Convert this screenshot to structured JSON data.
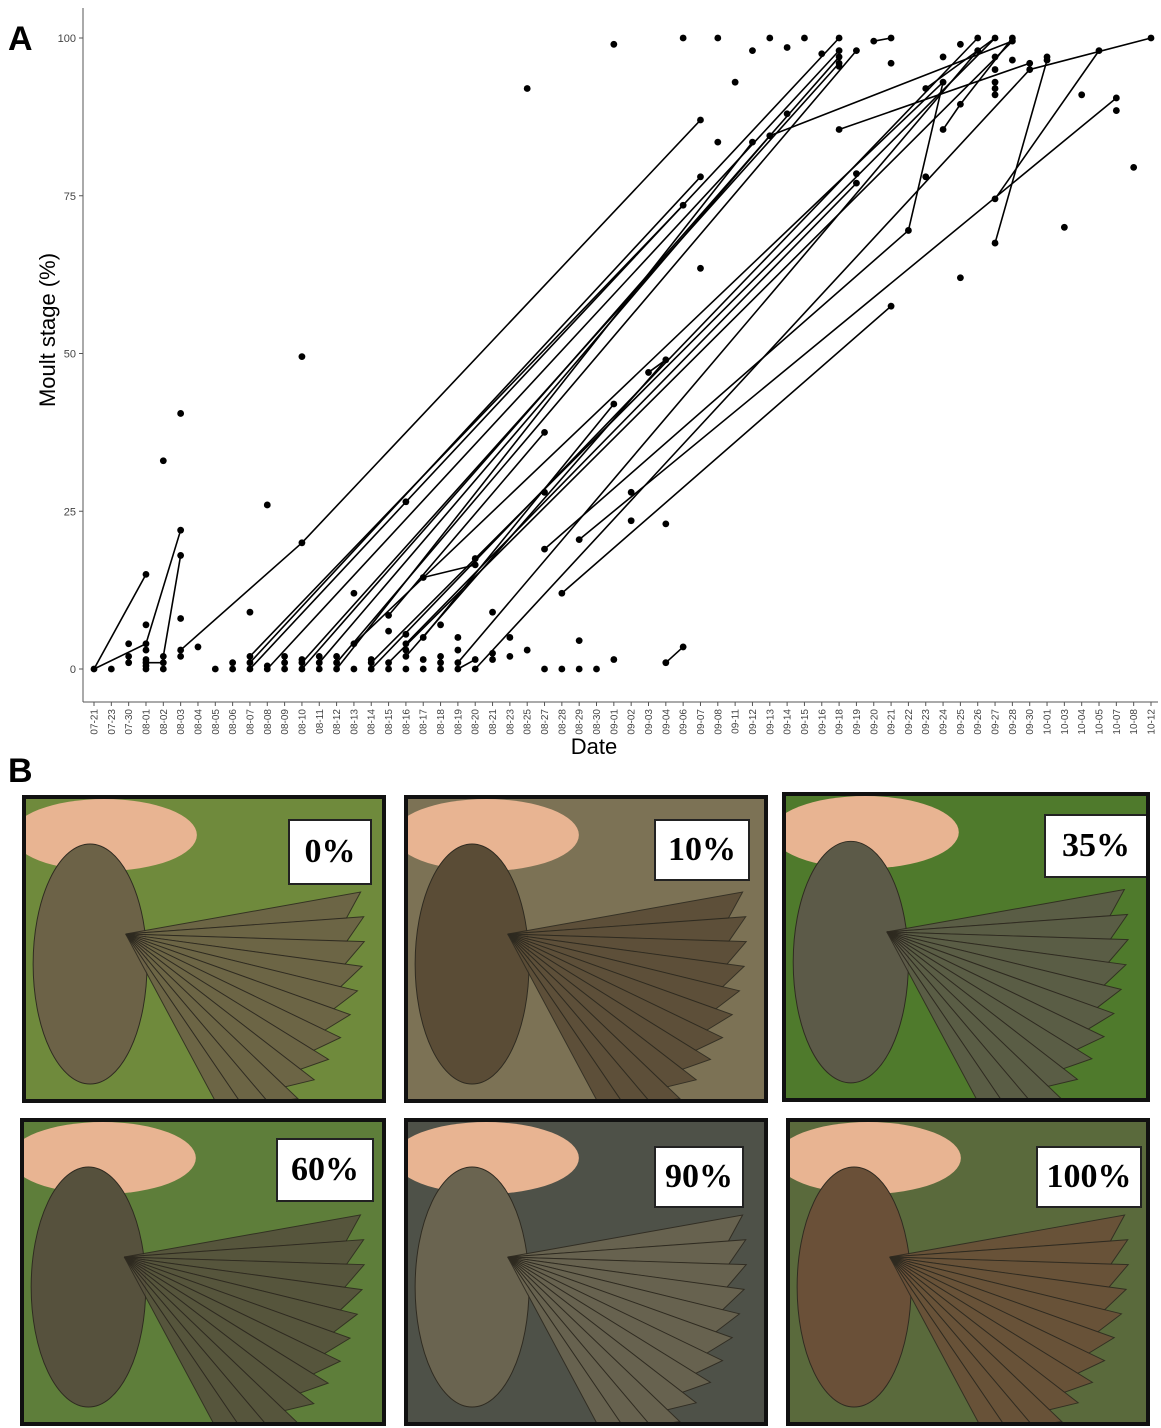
{
  "panel_a_label": "A",
  "panel_b_label": "B",
  "chart_data": {
    "type": "scatter",
    "xlabel": "Date",
    "ylabel": "Moult stage (%)",
    "ylim": [
      0,
      100
    ],
    "y_ticks": [
      0,
      25,
      50,
      75,
      100
    ],
    "x_categories": [
      "07-21",
      "07-23",
      "07-30",
      "08-01",
      "08-02",
      "08-03",
      "08-04",
      "08-05",
      "08-06",
      "08-07",
      "08-08",
      "08-09",
      "08-10",
      "08-11",
      "08-12",
      "08-13",
      "08-14",
      "08-15",
      "08-16",
      "08-17",
      "08-18",
      "08-19",
      "08-20",
      "08-21",
      "08-23",
      "08-25",
      "08-27",
      "08-28",
      "08-29",
      "08-30",
      "09-01",
      "09-02",
      "09-03",
      "09-04",
      "09-06",
      "09-07",
      "09-08",
      "09-11",
      "09-12",
      "09-13",
      "09-14",
      "09-15",
      "09-16",
      "09-18",
      "09-19",
      "09-20",
      "09-21",
      "09-22",
      "09-23",
      "09-24",
      "09-25",
      "09-26",
      "09-27",
      "09-28",
      "09-30",
      "10-01",
      "10-03",
      "10-04",
      "10-05",
      "10-07",
      "10-08",
      "10-12"
    ],
    "grid": false,
    "points": [
      [
        "07-21",
        0
      ],
      [
        "07-23",
        0
      ],
      [
        "07-30",
        1
      ],
      [
        "07-30",
        2
      ],
      [
        "07-30",
        4
      ],
      [
        "08-01",
        0
      ],
      [
        "08-01",
        0.5
      ],
      [
        "08-01",
        1
      ],
      [
        "08-01",
        1.5
      ],
      [
        "08-01",
        3
      ],
      [
        "08-01",
        4
      ],
      [
        "08-01",
        7
      ],
      [
        "08-01",
        15
      ],
      [
        "08-02",
        0
      ],
      [
        "08-02",
        1
      ],
      [
        "08-02",
        2
      ],
      [
        "08-02",
        33
      ],
      [
        "08-03",
        2
      ],
      [
        "08-03",
        3
      ],
      [
        "08-03",
        8
      ],
      [
        "08-03",
        18
      ],
      [
        "08-03",
        22
      ],
      [
        "08-03",
        40.5
      ],
      [
        "08-04",
        3.5
      ],
      [
        "08-05",
        0
      ],
      [
        "08-06",
        0
      ],
      [
        "08-06",
        1
      ],
      [
        "08-07",
        0
      ],
      [
        "08-07",
        1
      ],
      [
        "08-07",
        2
      ],
      [
        "08-07",
        9
      ],
      [
        "08-08",
        0
      ],
      [
        "08-08",
        0.5
      ],
      [
        "08-08",
        26
      ],
      [
        "08-09",
        0
      ],
      [
        "08-09",
        1
      ],
      [
        "08-09",
        2
      ],
      [
        "08-10",
        0
      ],
      [
        "08-10",
        1
      ],
      [
        "08-10",
        1.5
      ],
      [
        "08-10",
        20
      ],
      [
        "08-10",
        49.5
      ],
      [
        "08-11",
        0
      ],
      [
        "08-11",
        1
      ],
      [
        "08-11",
        2
      ],
      [
        "08-12",
        0
      ],
      [
        "08-12",
        1
      ],
      [
        "08-12",
        2
      ],
      [
        "08-13",
        0
      ],
      [
        "08-13",
        4
      ],
      [
        "08-13",
        12
      ],
      [
        "08-14",
        0
      ],
      [
        "08-14",
        1
      ],
      [
        "08-14",
        1.5
      ],
      [
        "08-15",
        0
      ],
      [
        "08-15",
        1
      ],
      [
        "08-15",
        6
      ],
      [
        "08-15",
        8.5
      ],
      [
        "08-16",
        0
      ],
      [
        "08-16",
        2
      ],
      [
        "08-16",
        3
      ],
      [
        "08-16",
        4
      ],
      [
        "08-16",
        5.5
      ],
      [
        "08-16",
        26.5
      ],
      [
        "08-17",
        0
      ],
      [
        "08-17",
        1.5
      ],
      [
        "08-17",
        5
      ],
      [
        "08-17",
        14.5
      ],
      [
        "08-18",
        0
      ],
      [
        "08-18",
        1
      ],
      [
        "08-18",
        2
      ],
      [
        "08-18",
        7
      ],
      [
        "08-19",
        0
      ],
      [
        "08-19",
        1
      ],
      [
        "08-19",
        3
      ],
      [
        "08-19",
        5
      ],
      [
        "08-20",
        0
      ],
      [
        "08-20",
        1.5
      ],
      [
        "08-20",
        16.5
      ],
      [
        "08-20",
        17.5
      ],
      [
        "08-21",
        1.5
      ],
      [
        "08-21",
        2.5
      ],
      [
        "08-21",
        9
      ],
      [
        "08-23",
        2
      ],
      [
        "08-23",
        5
      ],
      [
        "08-25",
        3
      ],
      [
        "08-25",
        92
      ],
      [
        "08-27",
        0
      ],
      [
        "08-27",
        19
      ],
      [
        "08-27",
        28
      ],
      [
        "08-27",
        37.5
      ],
      [
        "08-28",
        0
      ],
      [
        "08-28",
        12
      ],
      [
        "08-29",
        0
      ],
      [
        "08-29",
        4.5
      ],
      [
        "08-29",
        20.5
      ],
      [
        "08-30",
        0
      ],
      [
        "09-01",
        1.5
      ],
      [
        "09-01",
        42
      ],
      [
        "09-01",
        99
      ],
      [
        "09-02",
        23.5
      ],
      [
        "09-02",
        28
      ],
      [
        "09-03",
        47
      ],
      [
        "09-04",
        1
      ],
      [
        "09-04",
        23
      ],
      [
        "09-04",
        49
      ],
      [
        "09-06",
        3.5
      ],
      [
        "09-06",
        73.5
      ],
      [
        "09-06",
        100
      ],
      [
        "09-07",
        63.5
      ],
      [
        "09-07",
        78
      ],
      [
        "09-07",
        87
      ],
      [
        "09-08",
        83.5
      ],
      [
        "09-08",
        100
      ],
      [
        "09-11",
        93
      ],
      [
        "09-12",
        83.5
      ],
      [
        "09-12",
        98
      ],
      [
        "09-13",
        84.5
      ],
      [
        "09-13",
        100
      ],
      [
        "09-14",
        88
      ],
      [
        "09-14",
        98.5
      ],
      [
        "09-15",
        100
      ],
      [
        "09-16",
        97.5
      ],
      [
        "09-18",
        85.5
      ],
      [
        "09-18",
        95.5
      ],
      [
        "09-18",
        96
      ],
      [
        "09-18",
        97
      ],
      [
        "09-18",
        98
      ],
      [
        "09-18",
        100
      ],
      [
        "09-19",
        77
      ],
      [
        "09-19",
        78.5
      ],
      [
        "09-19",
        98
      ],
      [
        "09-20",
        99.5
      ],
      [
        "09-21",
        57.5
      ],
      [
        "09-21",
        96
      ],
      [
        "09-21",
        100
      ],
      [
        "09-22",
        69.5
      ],
      [
        "09-23",
        78
      ],
      [
        "09-23",
        92
      ],
      [
        "09-24",
        85.5
      ],
      [
        "09-24",
        93
      ],
      [
        "09-24",
        97
      ],
      [
        "09-25",
        62
      ],
      [
        "09-25",
        89.5
      ],
      [
        "09-25",
        99
      ],
      [
        "09-26",
        98
      ],
      [
        "09-26",
        100
      ],
      [
        "09-27",
        67.5
      ],
      [
        "09-27",
        74.5
      ],
      [
        "09-27",
        91
      ],
      [
        "09-27",
        92
      ],
      [
        "09-27",
        93
      ],
      [
        "09-27",
        95
      ],
      [
        "09-27",
        97
      ],
      [
        "09-27",
        100
      ],
      [
        "09-28",
        96.5
      ],
      [
        "09-28",
        99.5
      ],
      [
        "09-28",
        100
      ],
      [
        "09-30",
        95
      ],
      [
        "09-30",
        96
      ],
      [
        "10-01",
        96.5
      ],
      [
        "10-01",
        97
      ],
      [
        "10-03",
        70
      ],
      [
        "10-04",
        91
      ],
      [
        "10-05",
        98
      ],
      [
        "10-07",
        88.5
      ],
      [
        "10-07",
        90.5
      ],
      [
        "10-08",
        79.5
      ],
      [
        "10-12",
        100
      ]
    ],
    "segments": [
      [
        [
          "07-21",
          0
        ],
        [
          "08-01",
          15
        ]
      ],
      [
        [
          "07-21",
          0
        ],
        [
          "08-01",
          4
        ]
      ],
      [
        [
          "08-01",
          4
        ],
        [
          "08-03",
          22
        ]
      ],
      [
        [
          "08-01",
          1
        ],
        [
          "08-02",
          1
        ]
      ],
      [
        [
          "08-02",
          2
        ],
        [
          "08-03",
          18
        ]
      ],
      [
        [
          "08-03",
          3
        ],
        [
          "08-10",
          20
        ]
      ],
      [
        [
          "08-10",
          20
        ],
        [
          "09-07",
          87
        ]
      ],
      [
        [
          "08-07",
          0
        ],
        [
          "09-18",
          100
        ]
      ],
      [
        [
          "08-07",
          1
        ],
        [
          "09-07",
          78
        ]
      ],
      [
        [
          "08-07",
          2
        ],
        [
          "09-06",
          73.5
        ]
      ],
      [
        [
          "08-08",
          0
        ],
        [
          "09-18",
          98
        ]
      ],
      [
        [
          "08-10",
          0
        ],
        [
          "09-18",
          97
        ]
      ],
      [
        [
          "08-10",
          1
        ],
        [
          "09-18",
          96
        ]
      ],
      [
        [
          "08-11",
          1
        ],
        [
          "09-13",
          84.5
        ]
      ],
      [
        [
          "08-12",
          0
        ],
        [
          "09-12",
          83.5
        ]
      ],
      [
        [
          "08-12",
          1
        ],
        [
          "09-19",
          98
        ]
      ],
      [
        [
          "08-13",
          4
        ],
        [
          "09-24",
          93
        ]
      ],
      [
        [
          "08-14",
          0
        ],
        [
          "09-26",
          100
        ]
      ],
      [
        [
          "08-14",
          1
        ],
        [
          "09-27",
          100
        ]
      ],
      [
        [
          "08-15",
          1
        ],
        [
          "09-28",
          99.5
        ]
      ],
      [
        [
          "08-15",
          8.5
        ],
        [
          "08-27",
          37.5
        ]
      ],
      [
        [
          "08-16",
          2
        ],
        [
          "09-04",
          49
        ]
      ],
      [
        [
          "08-16",
          4
        ],
        [
          "09-19",
          77
        ]
      ],
      [
        [
          "08-17",
          5
        ],
        [
          "09-01",
          42
        ]
      ],
      [
        [
          "08-19",
          0
        ],
        [
          "08-20",
          1.5
        ]
      ],
      [
        [
          "08-19",
          1
        ],
        [
          "09-26",
          98
        ]
      ],
      [
        [
          "08-20",
          0
        ],
        [
          "09-30",
          95
        ]
      ],
      [
        [
          "08-20",
          16.5
        ],
        [
          "08-17",
          14.5
        ]
      ],
      [
        [
          "08-27",
          19
        ],
        [
          "09-22",
          69.5
        ]
      ],
      [
        [
          "08-28",
          12
        ],
        [
          "09-21",
          57.5
        ]
      ],
      [
        [
          "08-29",
          20.5
        ],
        [
          "10-07",
          90.5
        ]
      ],
      [
        [
          "09-03",
          47
        ],
        [
          "09-04",
          49
        ]
      ],
      [
        [
          "09-04",
          1
        ],
        [
          "09-06",
          3.5
        ]
      ],
      [
        [
          "09-13",
          84.5
        ],
        [
          "09-28",
          99.5
        ]
      ],
      [
        [
          "09-18",
          85.5
        ],
        [
          "09-30",
          96
        ]
      ],
      [
        [
          "09-22",
          69.5
        ],
        [
          "09-24",
          93
        ]
      ],
      [
        [
          "09-24",
          85.5
        ],
        [
          "09-25",
          89.5
        ]
      ],
      [
        [
          "09-25",
          89.5
        ],
        [
          "09-28",
          100
        ]
      ],
      [
        [
          "09-27",
          67.5
        ],
        [
          "10-01",
          96.5
        ]
      ],
      [
        [
          "09-27",
          74.5
        ],
        [
          "10-05",
          98
        ]
      ],
      [
        [
          "09-20",
          99.5
        ],
        [
          "09-21",
          100
        ]
      ],
      [
        [
          "09-30",
          95
        ],
        [
          "10-12",
          100
        ]
      ],
      [
        [
          "09-23",
          92
        ],
        [
          "09-27",
          100
        ]
      ]
    ]
  },
  "photos": [
    {
      "label": "0%",
      "bg": "#6f8a3c",
      "wing": "#6c6247"
    },
    {
      "label": "10%",
      "bg": "#7c7255",
      "wing": "#5a4c36"
    },
    {
      "label": "35%",
      "bg": "#4f7a2c",
      "wing": "#5c5a48"
    },
    {
      "label": "60%",
      "bg": "#5e7e3a",
      "wing": "#56513d"
    },
    {
      "label": "90%",
      "bg": "#4e5148",
      "wing": "#6a6450"
    },
    {
      "label": "100%",
      "bg": "#5a6a3c",
      "wing": "#6a5038"
    }
  ],
  "colors": {
    "ink": "#000000",
    "axis": "#555555",
    "skin": "#e8b492"
  }
}
